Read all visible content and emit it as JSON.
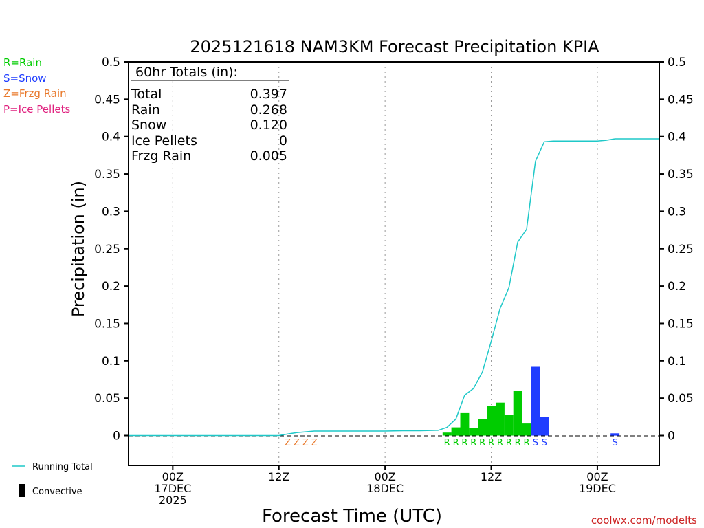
{
  "chart_data": {
    "type": "bar",
    "title": "2025121618 NAM3KM Forecast Precipitation KPIA",
    "xlabel": "Forecast Time (UTC)",
    "ylabel": "Precipitation (in)",
    "ylim": [
      -0.04,
      0.5
    ],
    "xlim_hours": [
      -5,
      55
    ],
    "y_ticks": [
      0,
      0.05,
      0.1,
      0.15,
      0.2,
      0.25,
      0.3,
      0.35,
      0.4,
      0.45,
      0.5
    ],
    "y_tick_labels": [
      "0",
      "0.05",
      "0.1",
      "0.15",
      "0.2",
      "0.25",
      "0.3",
      "0.35",
      "0.4",
      "0.45",
      "0.5"
    ],
    "x_ticks": [
      {
        "hour": 0,
        "lines": [
          "00Z",
          "17DEC",
          "2025"
        ]
      },
      {
        "hour": 12,
        "lines": [
          "12Z"
        ]
      },
      {
        "hour": 24,
        "lines": [
          "00Z",
          "18DEC"
        ]
      },
      {
        "hour": 36,
        "lines": [
          "12Z"
        ]
      },
      {
        "hour": 48,
        "lines": [
          "00Z",
          "19DEC"
        ]
      }
    ],
    "bars": [
      {
        "hour": 31,
        "value": 0.004,
        "type": "rain"
      },
      {
        "hour": 32,
        "value": 0.011,
        "type": "rain"
      },
      {
        "hour": 33,
        "value": 0.03,
        "type": "rain"
      },
      {
        "hour": 34,
        "value": 0.01,
        "type": "rain"
      },
      {
        "hour": 35,
        "value": 0.022,
        "type": "rain"
      },
      {
        "hour": 36,
        "value": 0.04,
        "type": "rain"
      },
      {
        "hour": 37,
        "value": 0.044,
        "type": "rain"
      },
      {
        "hour": 38,
        "value": 0.028,
        "type": "rain"
      },
      {
        "hour": 39,
        "value": 0.06,
        "type": "rain"
      },
      {
        "hour": 40,
        "value": 0.016,
        "type": "rain"
      },
      {
        "hour": 41,
        "value": 0.092,
        "type": "snow"
      },
      {
        "hour": 42,
        "value": 0.025,
        "type": "snow"
      },
      {
        "hour": 50,
        "value": 0.003,
        "type": "snow"
      }
    ],
    "running_total": {
      "hours": [
        -5,
        12,
        13,
        14,
        15,
        16,
        20,
        24,
        26,
        28,
        30,
        31,
        32,
        33,
        34,
        35,
        36,
        37,
        38,
        39,
        40,
        41,
        42,
        43,
        48,
        49,
        50,
        55
      ],
      "values": [
        0,
        0,
        0.002,
        0.004,
        0.005,
        0.006,
        0.006,
        0.006,
        0.0065,
        0.0065,
        0.007,
        0.011,
        0.022,
        0.054,
        0.063,
        0.085,
        0.126,
        0.17,
        0.198,
        0.259,
        0.276,
        0.367,
        0.393,
        0.394,
        0.394,
        0.395,
        0.397,
        0.397
      ]
    },
    "type_letters": [
      {
        "hour": 13,
        "letter": "Z",
        "type": "frzg"
      },
      {
        "hour": 14,
        "letter": "Z",
        "type": "frzg"
      },
      {
        "hour": 15,
        "letter": "Z",
        "type": "frzg"
      },
      {
        "hour": 16,
        "letter": "Z",
        "type": "frzg"
      },
      {
        "hour": 31,
        "letter": "R",
        "type": "rain"
      },
      {
        "hour": 32,
        "letter": "R",
        "type": "rain"
      },
      {
        "hour": 33,
        "letter": "R",
        "type": "rain"
      },
      {
        "hour": 34,
        "letter": "R",
        "type": "rain"
      },
      {
        "hour": 35,
        "letter": "R",
        "type": "rain"
      },
      {
        "hour": 36,
        "letter": "R",
        "type": "rain"
      },
      {
        "hour": 37,
        "letter": "R",
        "type": "rain"
      },
      {
        "hour": 38,
        "letter": "R",
        "type": "rain"
      },
      {
        "hour": 39,
        "letter": "R",
        "type": "rain"
      },
      {
        "hour": 40,
        "letter": "R",
        "type": "rain"
      },
      {
        "hour": 41,
        "letter": "S",
        "type": "snow"
      },
      {
        "hour": 42,
        "letter": "S",
        "type": "snow"
      },
      {
        "hour": 50,
        "letter": "S",
        "type": "snow"
      }
    ],
    "colors": {
      "rain": "#00cc00",
      "snow": "#1f3dff",
      "frzg": "#e8782a",
      "ice": "#e0207e",
      "running_total": "#1fc8c8",
      "axis": "#000000",
      "grid": "#999999",
      "credit": "#cc2222"
    }
  },
  "totals_box": {
    "heading": "60hr Totals (in):",
    "rows": [
      {
        "label": "Total",
        "value": "0.397"
      },
      {
        "label": "Rain",
        "value": "0.268"
      },
      {
        "label": "Snow",
        "value": "0.120"
      },
      {
        "label": "Ice Pellets",
        "value": "0"
      },
      {
        "label": "Frzg Rain",
        "value": "0.005"
      }
    ]
  },
  "type_legend": [
    {
      "text": "R=Rain",
      "type": "rain"
    },
    {
      "text": "S=Snow",
      "type": "snow"
    },
    {
      "text": "Z=Frzg Rain",
      "type": "frzg"
    },
    {
      "text": "P=Ice Pellets",
      "type": "ice"
    }
  ],
  "series_legend": {
    "running_total": "Running Total",
    "convective": "Convective"
  },
  "credit": "coolwx.com/modelts"
}
